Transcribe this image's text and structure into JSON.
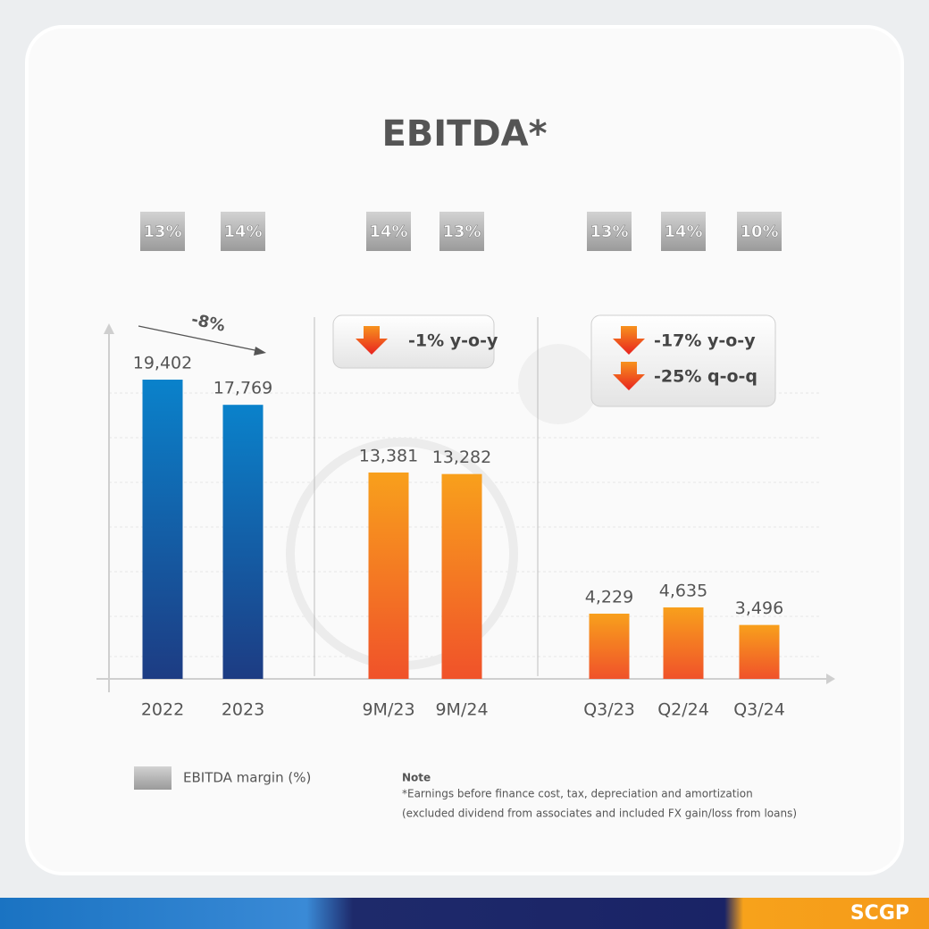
{
  "chart_data": {
    "type": "bar",
    "title": "EBITDA*",
    "groups": [
      {
        "categories": [
          "2022",
          "2023"
        ],
        "values": [
          19402,
          17769
        ],
        "value_labels": [
          "19,402",
          "17,769"
        ],
        "margins": [
          13,
          14
        ],
        "margin_labels": [
          "13%",
          "14%"
        ],
        "colors": [
          "#0a82cb",
          "#1d3c83"
        ],
        "annotations": [
          "-8%"
        ]
      },
      {
        "categories": [
          "9M/23",
          "9M/24"
        ],
        "values": [
          13381,
          13282
        ],
        "value_labels": [
          "13,381",
          "13,282"
        ],
        "margins": [
          14,
          13
        ],
        "margin_labels": [
          "14%",
          "13%"
        ],
        "colors": [
          "#f8a01c",
          "#f0522a"
        ],
        "annotations": [
          "-1% y-o-y"
        ]
      },
      {
        "categories": [
          "Q3/23",
          "Q2/24",
          "Q3/24"
        ],
        "values": [
          4229,
          4635,
          3496
        ],
        "value_labels": [
          "4,229",
          "4,635",
          "3,496"
        ],
        "margins": [
          13,
          14,
          10
        ],
        "margin_labels": [
          "13%",
          "14%",
          "10%"
        ],
        "colors": [
          "#f8a01c",
          "#f0522a"
        ],
        "annotations": [
          "-17% y-o-y",
          "-25% q-o-q"
        ]
      }
    ],
    "legend": "EBITDA margin (%)",
    "note_title": "Note",
    "note_lines": [
      "*Earnings before finance cost, tax, depreciation and amortization",
      "(excluded dividend from associates and included FX gain/loss from loans)"
    ],
    "logo": "SCGP"
  }
}
